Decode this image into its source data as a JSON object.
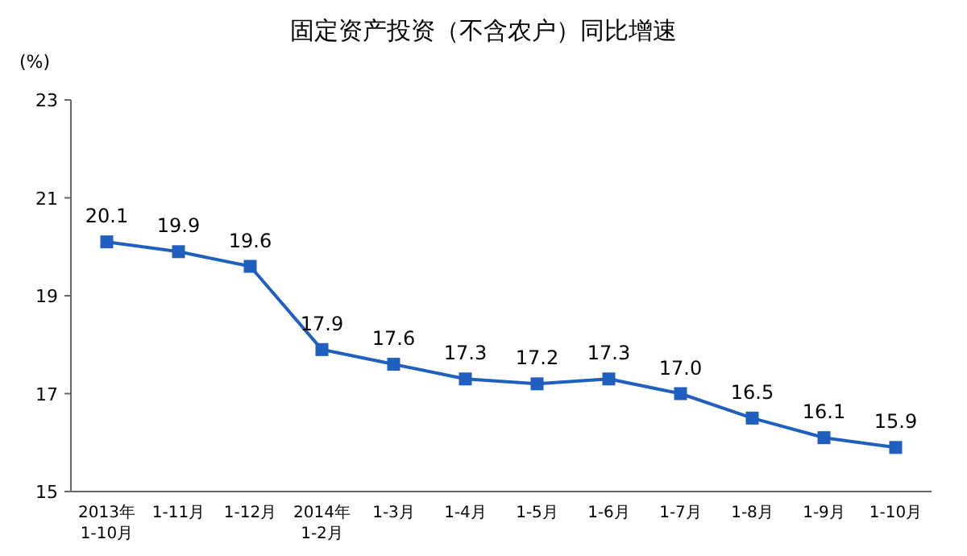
{
  "chart_data": {
    "type": "line",
    "title": "固定资产投资（不含农户）同比增速",
    "ylabel": "(%)",
    "categories": [
      "2013年\n1-10月",
      "1-11月",
      "1-12月",
      "2014年\n1-2月",
      "1-3月",
      "1-4月",
      "1-5月",
      "1-6月",
      "1-7月",
      "1-8月",
      "1-9月",
      "1-10月"
    ],
    "series": [
      {
        "color": "#1f5fbf",
        "values": [
          20.1,
          19.9,
          19.6,
          17.9,
          17.6,
          17.3,
          17.2,
          17.3,
          17.0,
          16.5,
          16.1,
          15.9
        ],
        "value_labels": [
          "20.1",
          "19.9",
          "19.6",
          "17.9",
          "17.6",
          "17.3",
          "17.2",
          "17.3",
          "17.0",
          "16.5",
          "16.1",
          "15.9"
        ]
      }
    ],
    "ylim": [
      15,
      23
    ],
    "yticks": [
      15,
      17,
      19,
      21,
      23
    ],
    "marker": "square",
    "line_style": "solid"
  }
}
